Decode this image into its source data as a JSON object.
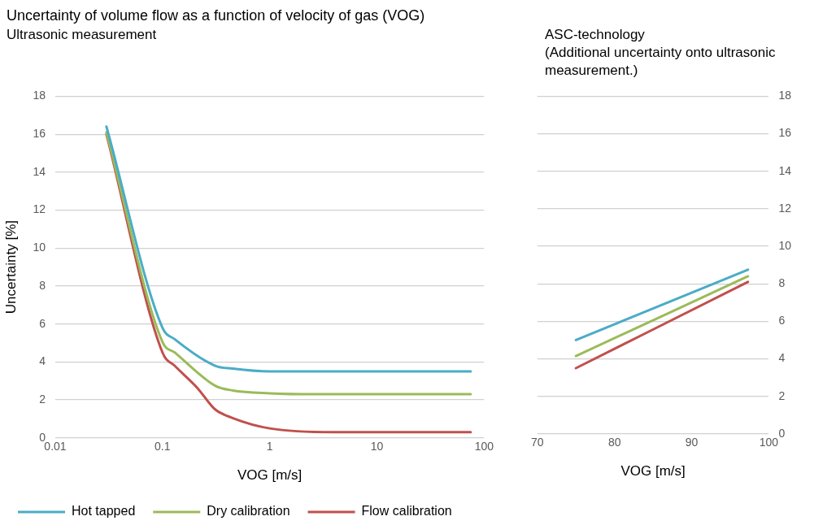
{
  "chart_data": [
    {
      "type": "line",
      "title": "Uncertainty of volume flow as a function of velocity of gas (VOG)",
      "subtitle": "Ultrasonic measurement",
      "xlabel": "VOG [m/s]",
      "ylabel": "Uncertainty [%]",
      "log": "x",
      "xlim": [
        0.01,
        100
      ],
      "xticks": [
        0.01,
        0.1,
        1,
        10,
        100
      ],
      "ylim": [
        0,
        18
      ],
      "yticks": [
        0,
        2,
        4,
        6,
        8,
        10,
        12,
        14,
        16,
        18
      ],
      "grid": "y",
      "legend": "bottom",
      "series": [
        {
          "name": "Hot tapped",
          "color": "#4bacc6",
          "x": [
            0.03,
            0.1,
            0.13,
            0.31,
            0.45,
            1,
            75
          ],
          "values": [
            16.4,
            5.8,
            5.2,
            3.8,
            3.65,
            3.5,
            3.5
          ]
        },
        {
          "name": "Dry calibration",
          "color": "#9bbb59",
          "x": [
            0.03,
            0.1,
            0.13,
            0.31,
            0.45,
            1,
            2.7,
            75
          ],
          "values": [
            16.1,
            5.05,
            4.5,
            2.75,
            2.5,
            2.35,
            2.3,
            2.3
          ]
        },
        {
          "name": "Flow calibration",
          "color": "#c0504d",
          "x": [
            0.03,
            0.1,
            0.13,
            0.21,
            0.31,
            0.45,
            1,
            4,
            75
          ],
          "values": [
            16,
            4.5,
            3.8,
            2.65,
            1.5,
            1.05,
            0.5,
            0.3,
            0.3
          ]
        }
      ]
    },
    {
      "type": "line",
      "title": "ASC-technology",
      "subtitle": "(Additional uncertainty onto ultrasonic measurement.)",
      "xlabel": "VOG [m/s]",
      "xlim": [
        70,
        100
      ],
      "xticks": [
        70,
        80,
        90,
        100
      ],
      "y2lim": [
        0,
        18
      ],
      "y2ticks": [
        0,
        2,
        4,
        6,
        8,
        10,
        12,
        14,
        16,
        18
      ],
      "grid": "y",
      "series": [
        {
          "color": "#4bacc6",
          "axis": "y2",
          "x": [
            75,
            97.3
          ],
          "values": [
            5.0,
            8.75
          ]
        },
        {
          "color": "#9bbb59",
          "axis": "y2",
          "x": [
            75,
            97.3
          ],
          "values": [
            4.15,
            8.4
          ]
        },
        {
          "color": "#c0504d",
          "axis": "y2",
          "x": [
            75,
            97.3
          ],
          "values": [
            3.5,
            8.1
          ]
        }
      ]
    }
  ]
}
